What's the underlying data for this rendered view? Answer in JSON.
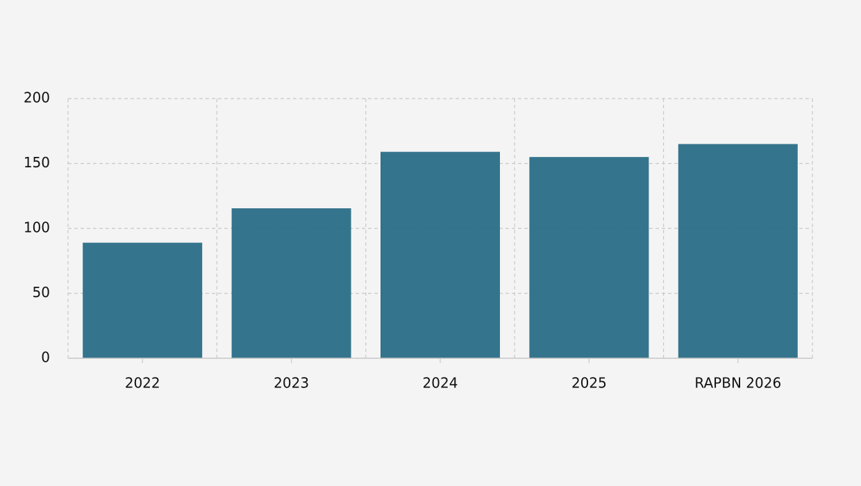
{
  "chart_data": {
    "type": "bar",
    "categories": [
      "2022",
      "2023",
      "2024",
      "2025",
      "RAPBN 2026"
    ],
    "values": [
      89,
      115.5,
      159,
      155,
      165
    ],
    "color": "#2a6d87",
    "ylim": [
      0,
      200
    ],
    "yticks": [
      0,
      50,
      100,
      150,
      200
    ],
    "grid": true
  }
}
